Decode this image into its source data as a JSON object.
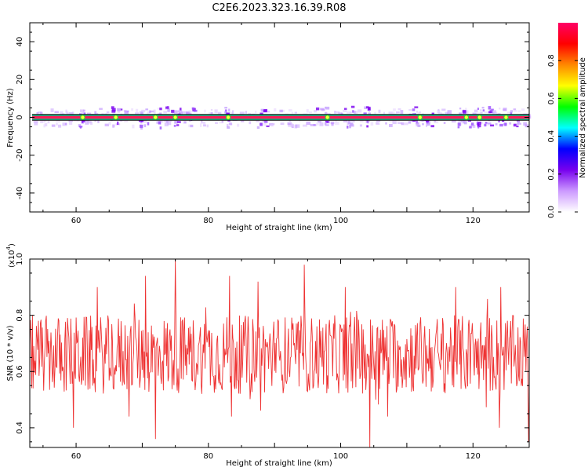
{
  "title": "C2E6.2023.323.16.39.R08",
  "chart_data": [
    {
      "type": "heatmap",
      "xlabel": "Height of straight line (km)",
      "ylabel": "Frequency (Hz)",
      "xlim": [
        53,
        128.5
      ],
      "ylim": [
        -50,
        50
      ],
      "xticks": [
        60,
        80,
        100,
        120
      ],
      "yticks": [
        -40,
        -20,
        0,
        20,
        40
      ],
      "ytick_labels": [
        "-40",
        "-20",
        "0",
        "20",
        "40"
      ],
      "band_center_hz": 0,
      "band_halfwidth_hz": 1.5,
      "colorbar": {
        "label": "Normalized spectral amplitude",
        "range": [
          0,
          1
        ],
        "ticks": [
          0.0,
          0.2,
          0.4,
          0.6,
          0.8
        ],
        "tick_labels": [
          "0.0",
          "0.2",
          "0.4",
          "0.6",
          "0.8"
        ],
        "colormap": [
          "#ffffff",
          "#cc99ff",
          "#7700ee",
          "#0000ff",
          "#00ffff",
          "#00ff00",
          "#ffff00",
          "#ff8800",
          "#ff0000",
          "#ff0066"
        ]
      },
      "bright_spots_km": [
        61,
        66,
        72,
        75,
        83,
        98,
        112,
        119,
        121,
        125
      ],
      "noise_clusters_km": [
        61,
        66,
        70,
        73,
        75,
        77,
        83,
        88,
        97,
        101,
        104,
        111,
        113,
        118,
        120,
        122,
        124,
        126
      ]
    },
    {
      "type": "line",
      "xlabel": "Height of straight line (km)",
      "ylabel": "SNR (10 * v/v)",
      "multiplier": "(x10",
      "multiplier_exp": "4",
      "xlim": [
        53,
        128.5
      ],
      "ylim": [
        0.33,
        1.0
      ],
      "xticks": [
        60,
        80,
        100,
        120
      ],
      "yticks": [
        0.4,
        0.6,
        0.8,
        1.0
      ],
      "ytick_labels": [
        "0.4",
        "0.6",
        "0.8",
        "1.0"
      ],
      "color": "#ee3333",
      "x_step_km": 0.1,
      "peaks": [
        {
          "x": 75.0,
          "y": 1.0
        },
        {
          "x": 94.5,
          "y": 0.98
        },
        {
          "x": 83.2,
          "y": 0.94
        },
        {
          "x": 70.5,
          "y": 0.94
        },
        {
          "x": 87.5,
          "y": 0.92
        },
        {
          "x": 124.2,
          "y": 0.9
        }
      ],
      "troughs": [
        {
          "x": 104.4,
          "y": 0.33
        },
        {
          "x": 72.0,
          "y": 0.36
        },
        {
          "x": 128.4,
          "y": 0.35
        },
        {
          "x": 59.6,
          "y": 0.4
        },
        {
          "x": 124.0,
          "y": 0.4
        },
        {
          "x": 83.5,
          "y": 0.44
        }
      ]
    }
  ]
}
